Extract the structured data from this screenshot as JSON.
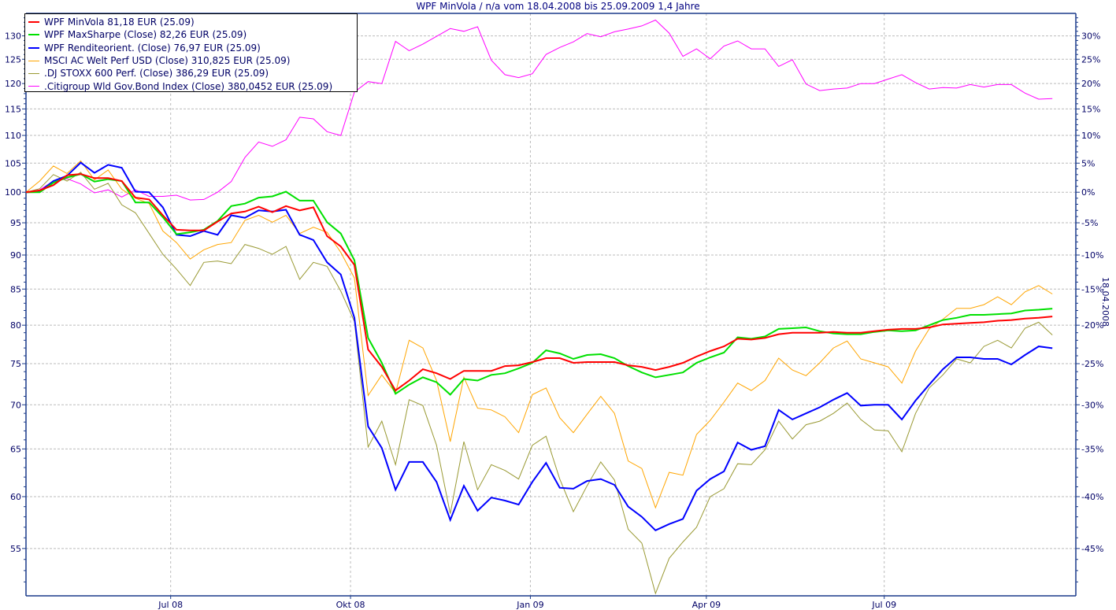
{
  "chart_data": {
    "type": "line",
    "title": "WPF MinVola / n/a vom 18.04.2008 bis 25.09.2009 1,4 Jahre",
    "side_label": "18.04.2008",
    "y_scale": "log",
    "ylim": [
      50.8,
      135
    ],
    "xlim": [
      "2008-04-18",
      "2009-10-07"
    ],
    "grid": true,
    "legend_position": "top-left",
    "y_ticks_left": [
      "55",
      "60",
      "65",
      "70",
      "75",
      "80",
      "85",
      "90",
      "95",
      "100",
      "105",
      "110",
      "115",
      "120",
      "125",
      "130"
    ],
    "y_tick_values_left": [
      55,
      60,
      65,
      70,
      75,
      80,
      85,
      90,
      95,
      100,
      105,
      110,
      115,
      120,
      125,
      130
    ],
    "y_ticks_right": [
      "-45%",
      "-40%",
      "-35%",
      "-30%",
      "-25%",
      "-20%",
      "-15%",
      "-10%",
      "-5%",
      "0%",
      "5%",
      "10%",
      "15%",
      "20%",
      "25%",
      "30%"
    ],
    "x_ticks": [
      {
        "label": "Jul 08",
        "date": "2008-07-01"
      },
      {
        "label": "Okt 08",
        "date": "2008-10-01"
      },
      {
        "label": "Jan 09",
        "date": "2009-01-01"
      },
      {
        "label": "Apr 09",
        "date": "2009-04-01"
      },
      {
        "label": "Jul 09",
        "date": "2009-07-01"
      }
    ],
    "x": [
      "2008-04-18",
      "2008-04-25",
      "2008-05-02",
      "2008-05-09",
      "2008-05-16",
      "2008-05-23",
      "2008-05-30",
      "2008-06-06",
      "2008-06-13",
      "2008-06-20",
      "2008-06-27",
      "2008-07-04",
      "2008-07-11",
      "2008-07-18",
      "2008-07-25",
      "2008-08-01",
      "2008-08-08",
      "2008-08-15",
      "2008-08-22",
      "2008-08-29",
      "2008-09-05",
      "2008-09-12",
      "2008-09-19",
      "2008-09-26",
      "2008-10-03",
      "2008-10-10",
      "2008-10-17",
      "2008-10-24",
      "2008-10-31",
      "2008-11-07",
      "2008-11-14",
      "2008-11-21",
      "2008-11-28",
      "2008-12-05",
      "2008-12-12",
      "2008-12-19",
      "2008-12-26",
      "2009-01-02",
      "2009-01-09",
      "2009-01-16",
      "2009-01-23",
      "2009-01-30",
      "2009-02-06",
      "2009-02-13",
      "2009-02-20",
      "2009-02-27",
      "2009-03-06",
      "2009-03-13",
      "2009-03-20",
      "2009-03-27",
      "2009-04-03",
      "2009-04-10",
      "2009-04-17",
      "2009-04-24",
      "2009-05-01",
      "2009-05-08",
      "2009-05-15",
      "2009-05-22",
      "2009-05-29",
      "2009-06-05",
      "2009-06-12",
      "2009-06-19",
      "2009-06-26",
      "2009-07-03",
      "2009-07-10",
      "2009-07-17",
      "2009-07-24",
      "2009-07-31",
      "2009-08-07",
      "2009-08-14",
      "2009-08-21",
      "2009-08-28",
      "2009-09-04",
      "2009-09-11",
      "2009-09-18",
      "2009-09-25"
    ],
    "series": [
      {
        "name": "WPF MinVola 81,18 EUR (25.09)",
        "color": "#ff0000",
        "width": 2,
        "values": [
          100,
          100.3,
          101.2,
          102.9,
          103.1,
          102.4,
          102.4,
          101.9,
          99.1,
          98.8,
          96.2,
          93.9,
          93.8,
          93.8,
          95.2,
          96.5,
          96.8,
          97.6,
          96.7,
          97.7,
          97.0,
          97.5,
          92.9,
          91.3,
          88.5,
          76.8,
          74.6,
          71.7,
          72.9,
          74.3,
          73.8,
          73.1,
          74.1,
          74.1,
          74.1,
          74.7,
          74.8,
          75.2,
          75.7,
          75.7,
          75.1,
          75.2,
          75.2,
          75.2,
          74.8,
          74.6,
          74.2,
          74.6,
          75.1,
          75.9,
          76.6,
          77.2,
          78.2,
          78.1,
          78.3,
          78.8,
          79.0,
          79.0,
          79.0,
          79.1,
          79.0,
          79.0,
          79.2,
          79.4,
          79.5,
          79.5,
          79.7,
          80.1,
          80.2,
          80.3,
          80.4,
          80.6,
          80.7,
          80.9,
          81.0,
          81.18
        ]
      },
      {
        "name": "WPF MaxSharpe (Close) 82,26 EUR (25.09)",
        "color": "#00e000",
        "width": 2,
        "values": [
          100,
          100,
          101.6,
          102.5,
          103.1,
          101.8,
          102.2,
          101.9,
          98.3,
          98.3,
          95.9,
          93.2,
          93.5,
          93.9,
          95.3,
          97.7,
          98.1,
          99.1,
          99.3,
          100.1,
          98.6,
          98.6,
          95.1,
          93.3,
          89.2,
          78.3,
          75.1,
          71.3,
          72.4,
          73.3,
          72.7,
          71.2,
          73.1,
          72.9,
          73.6,
          73.8,
          74.4,
          75.1,
          76.7,
          76.3,
          75.6,
          76.1,
          76.2,
          75.7,
          74.7,
          73.9,
          73.3,
          73.6,
          73.9,
          75.1,
          75.8,
          76.4,
          78.4,
          78.2,
          78.5,
          79.5,
          79.6,
          79.7,
          79.2,
          78.9,
          78.8,
          78.8,
          79.1,
          79.3,
          79.2,
          79.3,
          80.0,
          80.7,
          81.0,
          81.4,
          81.4,
          81.5,
          81.6,
          82.0,
          82.1,
          82.26
        ]
      },
      {
        "name": "WPF Renditeorient. (Close) 76,97 EUR (25.09)",
        "color": "#0000ff",
        "width": 2,
        "values": [
          100,
          100.1,
          101.9,
          102.8,
          105.1,
          103.3,
          104.7,
          104.2,
          100.1,
          100,
          97.5,
          93.1,
          92.9,
          93.7,
          93.1,
          96.2,
          95.8,
          97.0,
          96.8,
          97.1,
          93.1,
          92.3,
          88.9,
          87.1,
          81.0,
          67.5,
          65.1,
          60.7,
          63.6,
          63.6,
          61.5,
          57.7,
          61.1,
          58.6,
          59.9,
          59.6,
          59.2,
          61.5,
          63.5,
          60.9,
          60.8,
          61.6,
          61.8,
          61.2,
          59.0,
          58.0,
          56.7,
          57.3,
          57.8,
          60.6,
          61.8,
          62.6,
          65.7,
          64.9,
          65.3,
          69.4,
          68.3,
          69.0,
          69.7,
          70.6,
          71.4,
          69.9,
          70.0,
          70.0,
          68.3,
          70.5,
          72.4,
          74.3,
          75.8,
          75.8,
          75.6,
          75.6,
          74.9,
          76.1,
          77.2,
          76.97
        ]
      },
      {
        "name": "MSCI AC Welt Perf USD (Close) 310,825 EUR (25.09)",
        "color": "#ffa500",
        "width": 1,
        "values": [
          100,
          101.9,
          104.5,
          103.2,
          105.4,
          102.1,
          103.8,
          100.5,
          99.0,
          98.1,
          93.7,
          91.9,
          89.4,
          90.8,
          91.6,
          91.9,
          95.4,
          96.2,
          95.1,
          96.2,
          93.3,
          94.3,
          93.5,
          90.4,
          86.6,
          71.1,
          73.6,
          71.4,
          78.0,
          77.0,
          72.9,
          65.8,
          73.3,
          69.6,
          69.4,
          68.6,
          66.8,
          71.2,
          72.0,
          68.5,
          66.8,
          68.9,
          71.0,
          69.0,
          63.7,
          62.9,
          58.9,
          62.5,
          62.2,
          66.6,
          68.2,
          70.3,
          72.6,
          71.7,
          72.9,
          75.7,
          74.2,
          73.5,
          75.1,
          77.0,
          77.9,
          75.6,
          75.1,
          74.6,
          72.6,
          76.6,
          79.5,
          80.8,
          82.3,
          82.3,
          82.8,
          83.9,
          82.8,
          84.6,
          85.5,
          84.3
        ]
      },
      {
        "name": ".DJ STOXX 600 Perf. (Close) 386,29 EUR (25.09)",
        "color": "#999933",
        "width": 1,
        "values": [
          100,
          100.6,
          103.0,
          101.9,
          103.4,
          100.5,
          101.5,
          97.9,
          96.6,
          93.3,
          90.1,
          87.9,
          85.5,
          88.9,
          89.1,
          88.7,
          91.6,
          91.0,
          90.1,
          91.3,
          86.4,
          88.9,
          88.3,
          84.7,
          80.5,
          65.2,
          68.1,
          63.3,
          70.6,
          69.9,
          65.4,
          58.3,
          65.8,
          60.7,
          63.3,
          62.7,
          61.8,
          65.4,
          66.4,
          61.8,
          58.5,
          61.1,
          63.6,
          61.7,
          56.8,
          55.5,
          51.0,
          54.1,
          55.6,
          57.0,
          60.0,
          60.8,
          63.4,
          63.3,
          64.9,
          68.1,
          66.1,
          67.7,
          68.1,
          69.0,
          70.2,
          68.3,
          67.1,
          67.0,
          64.7,
          69.0,
          72.0,
          73.6,
          75.6,
          75.1,
          77.2,
          78.0,
          77.0,
          79.6,
          80.4,
          78.7
        ]
      },
      {
        "name": ".Citigroup Wld Gov.Bond Index (Close) 380,0452 EUR (25.09)",
        "color": "#ff00ff",
        "width": 1,
        "values": [
          100,
          100.4,
          101.9,
          102.3,
          101.4,
          99.9,
          100.4,
          99.2,
          100.4,
          99.3,
          99.3,
          99.5,
          98.7,
          98.8,
          100.0,
          101.8,
          106.0,
          108.8,
          108.0,
          109.2,
          113.4,
          113.1,
          110.7,
          110.0,
          118.3,
          120.4,
          120.0,
          128.8,
          126.8,
          128.2,
          129.9,
          131.6,
          131.0,
          132.0,
          124.8,
          121.8,
          121.2,
          122.0,
          126.0,
          127.5,
          128.7,
          130.5,
          129.8,
          130.9,
          131.5,
          132.2,
          133.5,
          130.6,
          125.6,
          127.2,
          125.1,
          127.8,
          128.9,
          127.2,
          127.2,
          123.5,
          124.9,
          119.9,
          118.6,
          118.9,
          119.1,
          120.0,
          120.0,
          120.9,
          121.8,
          120.2,
          118.9,
          119.2,
          119.1,
          119.8,
          119.3,
          119.8,
          119.8,
          118.1,
          116.9,
          117.0
        ]
      }
    ],
    "colors": {
      "axis": "#1a3a8a",
      "text": "#000066",
      "grid": "#bbbbbb"
    }
  }
}
